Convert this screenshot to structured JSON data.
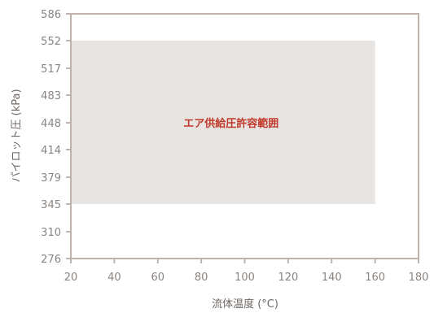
{
  "chart_data": {
    "type": "area",
    "xlabel": "流体温度 (°C)",
    "ylabel": "パイロット圧 (kPa)",
    "xlim": [
      20,
      180
    ],
    "ylim": [
      276,
      586
    ],
    "x_ticks": [
      20,
      40,
      60,
      80,
      100,
      120,
      140,
      160,
      180
    ],
    "y_ticks": [
      276,
      310,
      345,
      379,
      414,
      448,
      483,
      517,
      552,
      586
    ],
    "regions": [
      {
        "label": "エア供給圧許容範囲",
        "x_range": [
          20,
          160
        ],
        "y_range": [
          345,
          552
        ],
        "color": "#e8e4e1"
      }
    ],
    "grid": false,
    "colors": {
      "axis": "#bfb3ad",
      "label_text": "#c0392b"
    }
  }
}
